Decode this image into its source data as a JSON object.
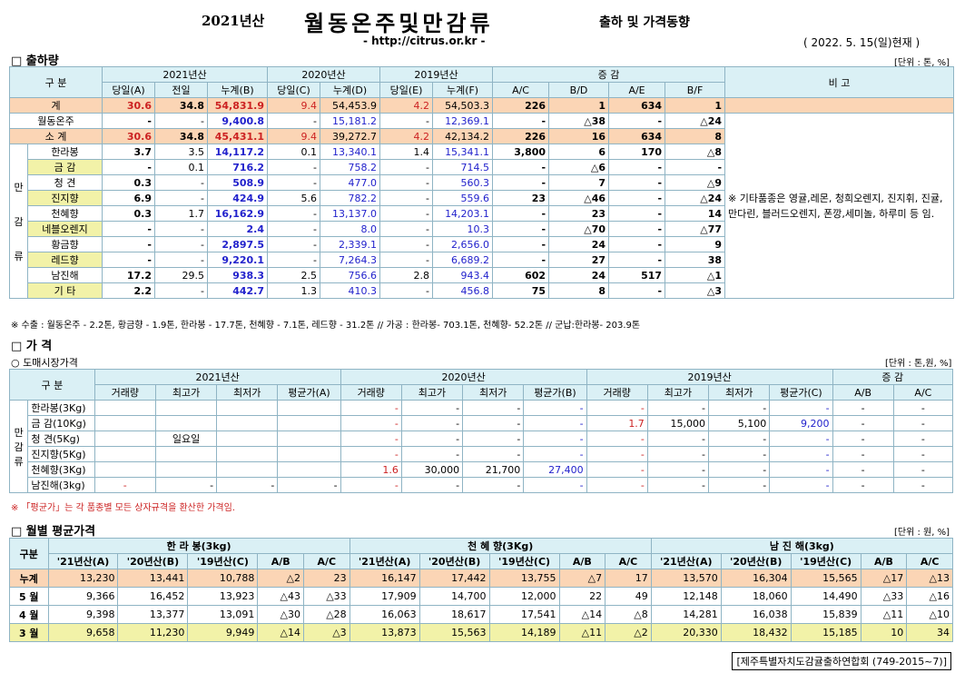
{
  "header": {
    "year": "2021년산",
    "title": "월동온주및만감류",
    "subtitle": "출하 및 가격동향",
    "url": "- http://citrus.or.kr -",
    "date": "( 2022. 5. 15(일)현재 )"
  },
  "ship": {
    "section": "□ 출하량",
    "unit": "[단위 : 톤, %]",
    "h1": [
      "구 분",
      "2021년산",
      "2020년산",
      "2019년산",
      "증 감",
      "비 고"
    ],
    "h2": [
      "당일(A)",
      "전일",
      "누계(B)",
      "당일(C)",
      "누계(D)",
      "당일(E)",
      "누계(F)",
      "A/C",
      "B/D",
      "A/E",
      "B/F"
    ],
    "rows": [
      {
        "label": "계",
        "v": [
          "30.6",
          "34.8",
          "54,831.9",
          "9.4",
          "54,453.9",
          "4.2",
          "54,503.3",
          "226",
          "1",
          "634",
          "1"
        ]
      },
      {
        "label": "월동온주",
        "v": [
          "-",
          "-",
          "9,400.8",
          "-",
          "15,181.2",
          "-",
          "12,369.1",
          "-",
          "△38",
          "-",
          "△24"
        ]
      },
      {
        "label": "소 계",
        "v": [
          "30.6",
          "34.8",
          "45,431.1",
          "9.4",
          "39,272.7",
          "4.2",
          "42,134.2",
          "226",
          "16",
          "634",
          "8"
        ]
      },
      {
        "label": "한라봉",
        "v": [
          "3.7",
          "3.5",
          "14,117.2",
          "0.1",
          "13,340.1",
          "1.4",
          "15,341.1",
          "3,800",
          "6",
          "170",
          "△8"
        ]
      },
      {
        "label": "금 감",
        "v": [
          "-",
          "0.1",
          "716.2",
          "-",
          "758.2",
          "-",
          "714.5",
          "-",
          "△6",
          "-",
          "-"
        ]
      },
      {
        "label": "청 견",
        "v": [
          "0.3",
          "-",
          "508.9",
          "-",
          "477.0",
          "-",
          "560.3",
          "-",
          "7",
          "-",
          "△9"
        ]
      },
      {
        "label": "진지향",
        "v": [
          "6.9",
          "-",
          "424.9",
          "5.6",
          "782.2",
          "-",
          "559.6",
          "23",
          "△46",
          "-",
          "△24"
        ]
      },
      {
        "label": "천혜향",
        "v": [
          "0.3",
          "1.7",
          "16,162.9",
          "-",
          "13,137.0",
          "-",
          "14,203.1",
          "-",
          "23",
          "-",
          "14"
        ]
      },
      {
        "label": "네블오렌지",
        "v": [
          "-",
          "-",
          "2.4",
          "-",
          "8.0",
          "-",
          "10.3",
          "-",
          "△70",
          "-",
          "△77"
        ]
      },
      {
        "label": "황금향",
        "v": [
          "-",
          "-",
          "2,897.5",
          "-",
          "2,339.1",
          "-",
          "2,656.0",
          "-",
          "24",
          "-",
          "9"
        ]
      },
      {
        "label": "레드향",
        "v": [
          "-",
          "-",
          "9,220.1",
          "-",
          "7,264.3",
          "-",
          "6,689.2",
          "-",
          "27",
          "-",
          "38"
        ]
      },
      {
        "label": "남진해",
        "v": [
          "17.2",
          "29.5",
          "938.3",
          "2.5",
          "756.6",
          "2.8",
          "943.4",
          "602",
          "24",
          "517",
          "△1"
        ]
      },
      {
        "label": "기 타",
        "v": [
          "2.2",
          "-",
          "442.7",
          "1.3",
          "410.3",
          "-",
          "456.8",
          "75",
          "8",
          "-",
          "△3"
        ]
      }
    ],
    "group_label": "만감류",
    "remark": "※ 기타품종은 영귤,레몬, 청희오렌지, 진지휘, 진귤, 만다린, 블러드오렌지, 폰깡,세미놀, 하루미 등 임.",
    "note": "※ 수출 : 월동온주 - 2.2톤, 황금향 - 1.9톤, 한라봉 - 17.7톤, 천혜향 - 7.1톤, 레드향 - 31.2톤 // 가공 : 한라봉- 703.1톤, 천혜향- 52.2톤 // 군납:한라봉- 203.9톤"
  },
  "price": {
    "section": "□ 가 격",
    "subsection": "○ 도매시장가격",
    "unit": "[단위 : 톤,원, %]",
    "h1": [
      "구 분",
      "2021년산",
      "2020년산",
      "2019년산",
      "증 감"
    ],
    "h2": [
      "거래량",
      "최고가",
      "최저가",
      "평균가(A)",
      "거래량",
      "최고가",
      "최저가",
      "평균가(B)",
      "거래량",
      "최고가",
      "최저가",
      "평균가(C)",
      "A/B",
      "A/C"
    ],
    "group_label": "만감류",
    "rows": [
      {
        "label": "한라봉(3Kg)",
        "v": [
          "",
          "",
          "",
          "",
          "-",
          "-",
          "-",
          "-",
          "-",
          "-",
          "-",
          "-",
          "-",
          "-"
        ]
      },
      {
        "label": "금 감(10Kg)",
        "v": [
          "",
          "",
          "",
          "",
          "-",
          "-",
          "-",
          "-",
          "1.7",
          "15,000",
          "5,100",
          "9,200",
          "-",
          "-"
        ]
      },
      {
        "label": "청 견(5Kg)",
        "v": [
          "",
          "일요일",
          "",
          "",
          "-",
          "-",
          "-",
          "-",
          "-",
          "-",
          "-",
          "-",
          "-",
          "-"
        ]
      },
      {
        "label": "진지향(5Kg)",
        "v": [
          "",
          "",
          "",
          "",
          "-",
          "-",
          "-",
          "-",
          "-",
          "-",
          "-",
          "-",
          "-",
          "-"
        ]
      },
      {
        "label": "천혜향(3Kg)",
        "v": [
          "",
          "",
          "",
          "",
          "1.6",
          "30,000",
          "21,700",
          "27,400",
          "-",
          "-",
          "-",
          "-",
          "-",
          "-"
        ]
      },
      {
        "label": "남진해(3kg)",
        "v": [
          "-",
          "-",
          "-",
          "-",
          "-",
          "-",
          "-",
          "-",
          "-",
          "-",
          "-",
          "-",
          "-",
          "-"
        ]
      }
    ],
    "note": "※ 「평균가」는 각 품종별 모든 상자규격을 환산한 가격임."
  },
  "monthly": {
    "section": "□ 월별 평균가격",
    "unit": "[단위 : 원, %]",
    "corner": "구분",
    "groups": [
      "한 라 봉(3kg)",
      "천 혜 향(3Kg)",
      "남 진 해(3kg)"
    ],
    "h2": [
      "'21년산(A)",
      "'20년산(B)",
      "'19년산(C)",
      "A/B",
      "A/C"
    ],
    "rows": [
      {
        "label": "누계",
        "v": [
          "13,230",
          "13,441",
          "10,788",
          "△2",
          "23",
          "16,147",
          "17,442",
          "13,755",
          "△7",
          "17",
          "13,570",
          "16,304",
          "15,565",
          "△17",
          "△13"
        ]
      },
      {
        "label": "5 월",
        "v": [
          "9,366",
          "16,452",
          "13,923",
          "△43",
          "△33",
          "17,909",
          "14,700",
          "12,000",
          "22",
          "49",
          "12,148",
          "18,060",
          "14,490",
          "△33",
          "△16"
        ]
      },
      {
        "label": "4 월",
        "v": [
          "9,398",
          "13,377",
          "13,091",
          "△30",
          "△28",
          "16,063",
          "18,617",
          "17,541",
          "△14",
          "△8",
          "14,281",
          "16,038",
          "15,839",
          "△11",
          "△10"
        ]
      },
      {
        "label": "3 월",
        "v": [
          "9,658",
          "11,230",
          "9,949",
          "△14",
          "△3",
          "13,873",
          "15,563",
          "14,189",
          "△11",
          "△2",
          "20,330",
          "18,432",
          "15,185",
          "10",
          "34"
        ]
      }
    ]
  },
  "footer": "[제주특별자치도감귤출하연합회 (749-2015~7)]"
}
